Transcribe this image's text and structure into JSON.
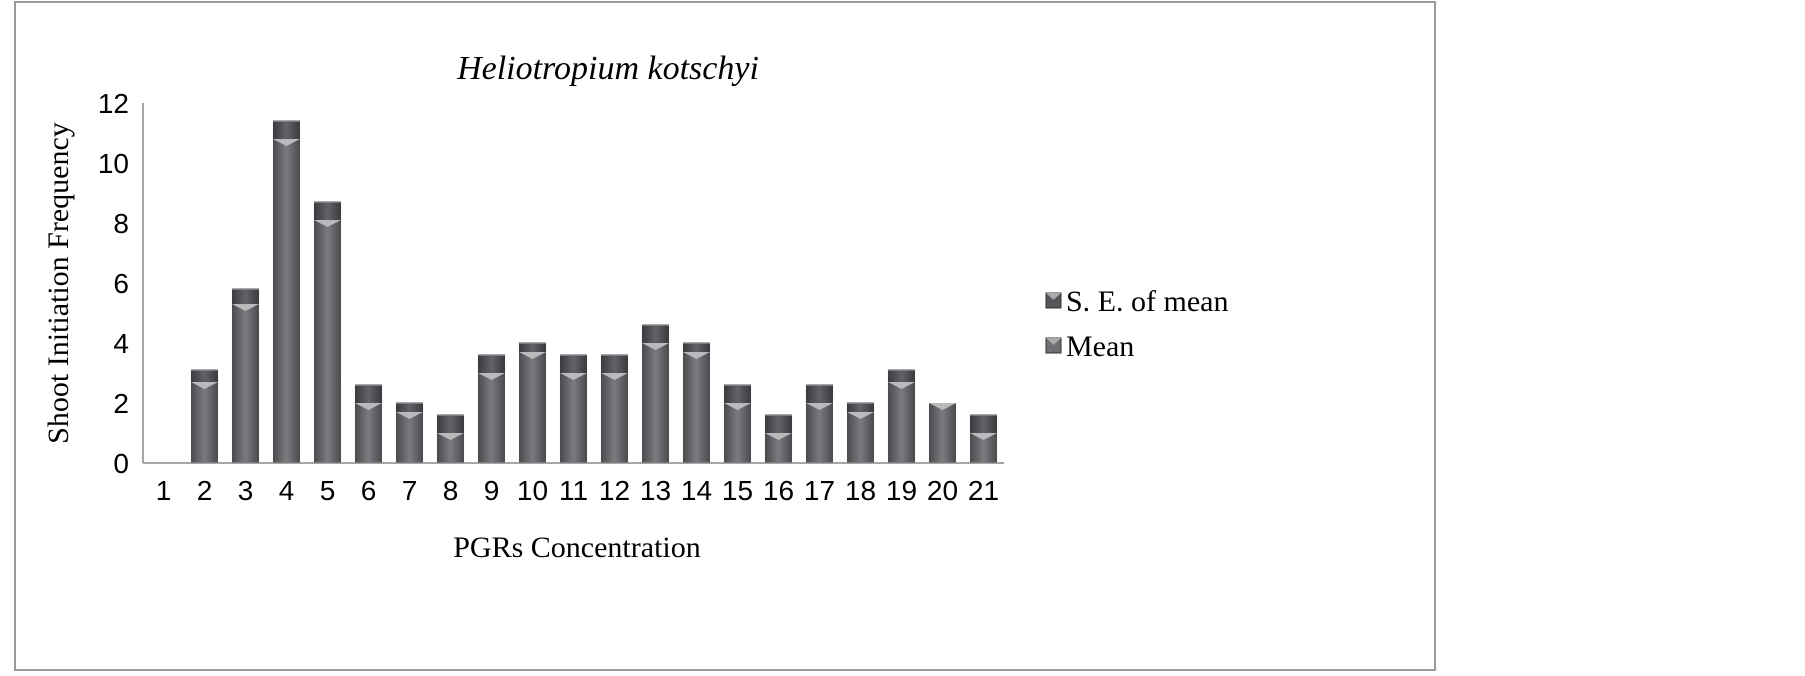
{
  "chart_data": {
    "type": "bar",
    "stacked": true,
    "title": "Heliotropium kotschyi",
    "xlabel": "PGRs Concentration",
    "ylabel": "Shoot Initiation Frequency",
    "categories": [
      "1",
      "2",
      "3",
      "4",
      "5",
      "6",
      "7",
      "8",
      "9",
      "10",
      "11",
      "12",
      "13",
      "14",
      "15",
      "16",
      "17",
      "18",
      "19",
      "20",
      "21"
    ],
    "ylim": [
      0,
      12
    ],
    "yticks": [
      "0",
      "2",
      "4",
      "6",
      "8",
      "10",
      "12"
    ],
    "series": [
      {
        "name": "Mean",
        "values": [
          0,
          2.7,
          5.3,
          10.8,
          8.1,
          2.0,
          1.7,
          1.0,
          3.0,
          3.7,
          3.0,
          3.0,
          4.0,
          3.7,
          2.0,
          1.0,
          2.0,
          1.7,
          2.7,
          2.0,
          1.0
        ],
        "color": "#6e6f72"
      },
      {
        "name": "S. E. of mean",
        "values": [
          0,
          0.4,
          0.5,
          0.6,
          0.6,
          0.6,
          0.3,
          0.6,
          0.6,
          0.3,
          0.6,
          0.6,
          0.6,
          0.3,
          0.6,
          0.6,
          0.6,
          0.3,
          0.4,
          0.0,
          0.6
        ],
        "color": "#54565a"
      }
    ],
    "legend": {
      "position": "right",
      "entries": [
        "S. E. of mean",
        "Mean"
      ]
    },
    "grid": false
  }
}
